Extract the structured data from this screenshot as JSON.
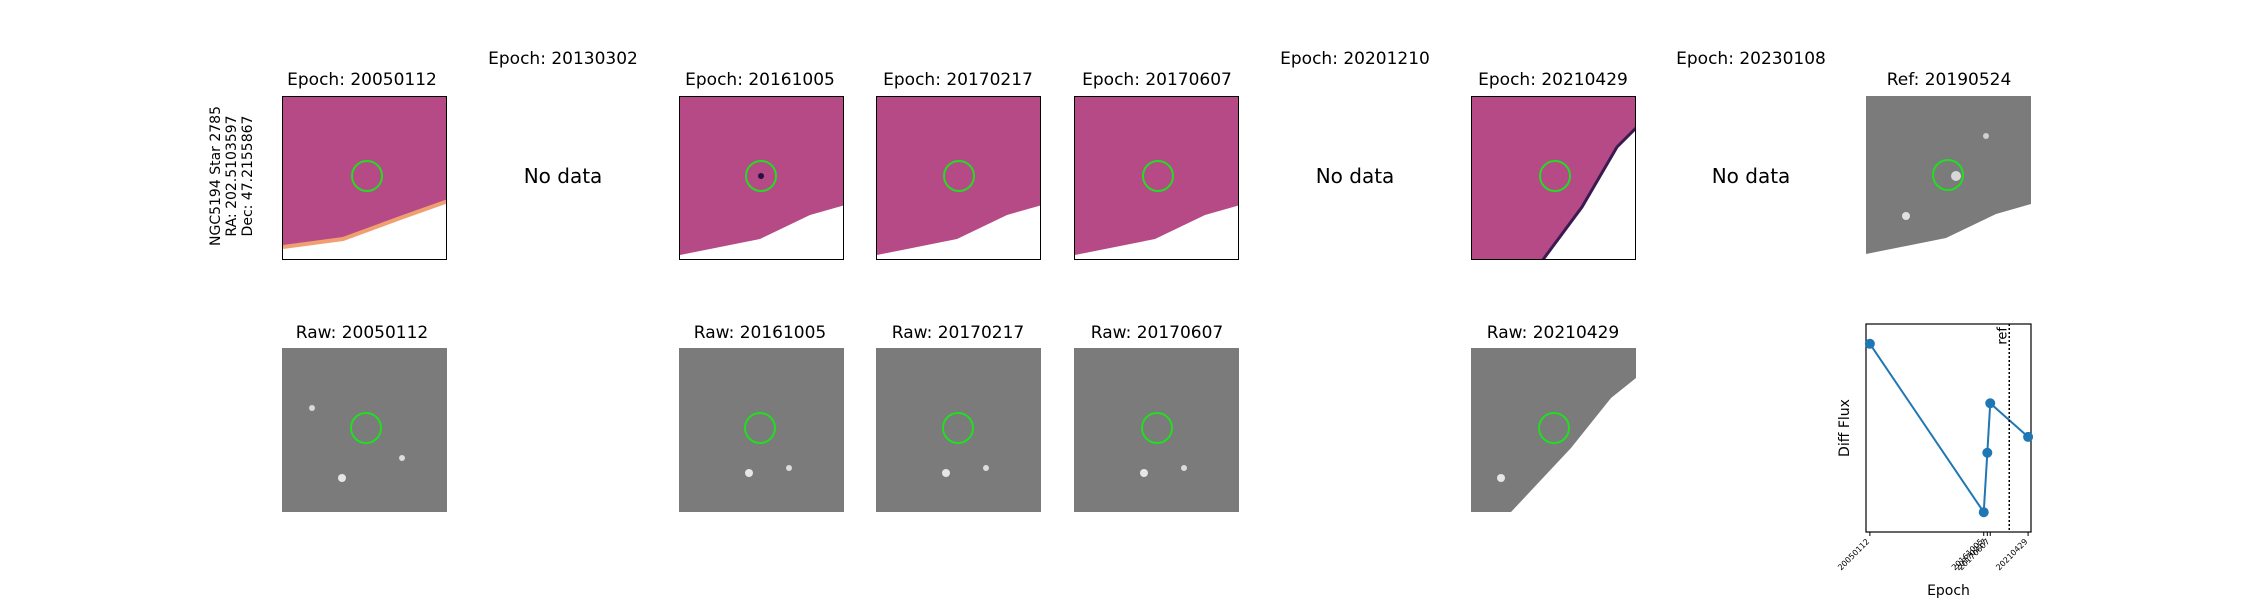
{
  "star_label": {
    "name": "NGC5194 Star 2785",
    "ra": "RA: 202.5103597",
    "dec": "Dec: 47.2155867"
  },
  "diff_titles": [
    "Epoch: 20050112",
    "Epoch: 20130302",
    "Epoch: 20161005",
    "Epoch: 20170217",
    "Epoch: 20170607",
    "Epoch: 20201210",
    "Epoch: 20210429",
    "Epoch: 20230108"
  ],
  "ref_title": "Ref: 20190524",
  "no_data_label": "No data",
  "raw_titles": [
    "Raw: 20050112",
    "Raw: 20161005",
    "Raw: 20170217",
    "Raw: 20170607",
    "Raw: 20210429"
  ],
  "colors": {
    "marker_circle": "#22dd22",
    "diff_cmap": "#b54a86",
    "raw_gray": "#7b7b7b",
    "series_line": "#1f77b4"
  },
  "chart_data": {
    "type": "line",
    "xlabel": "Epoch",
    "ylabel": "Diff Flux",
    "categories": [
      "20050112",
      "20161005",
      "20170217",
      "20170607",
      "20210429"
    ],
    "x_positions_years": [
      2005.03,
      2016.76,
      2017.13,
      2017.43,
      2021.33
    ],
    "values": [
      0.95,
      0.1,
      0.4,
      0.65,
      0.48
    ],
    "ref_line": {
      "label": "ref",
      "year": 2019.39
    },
    "grid": false,
    "legend": "none"
  }
}
